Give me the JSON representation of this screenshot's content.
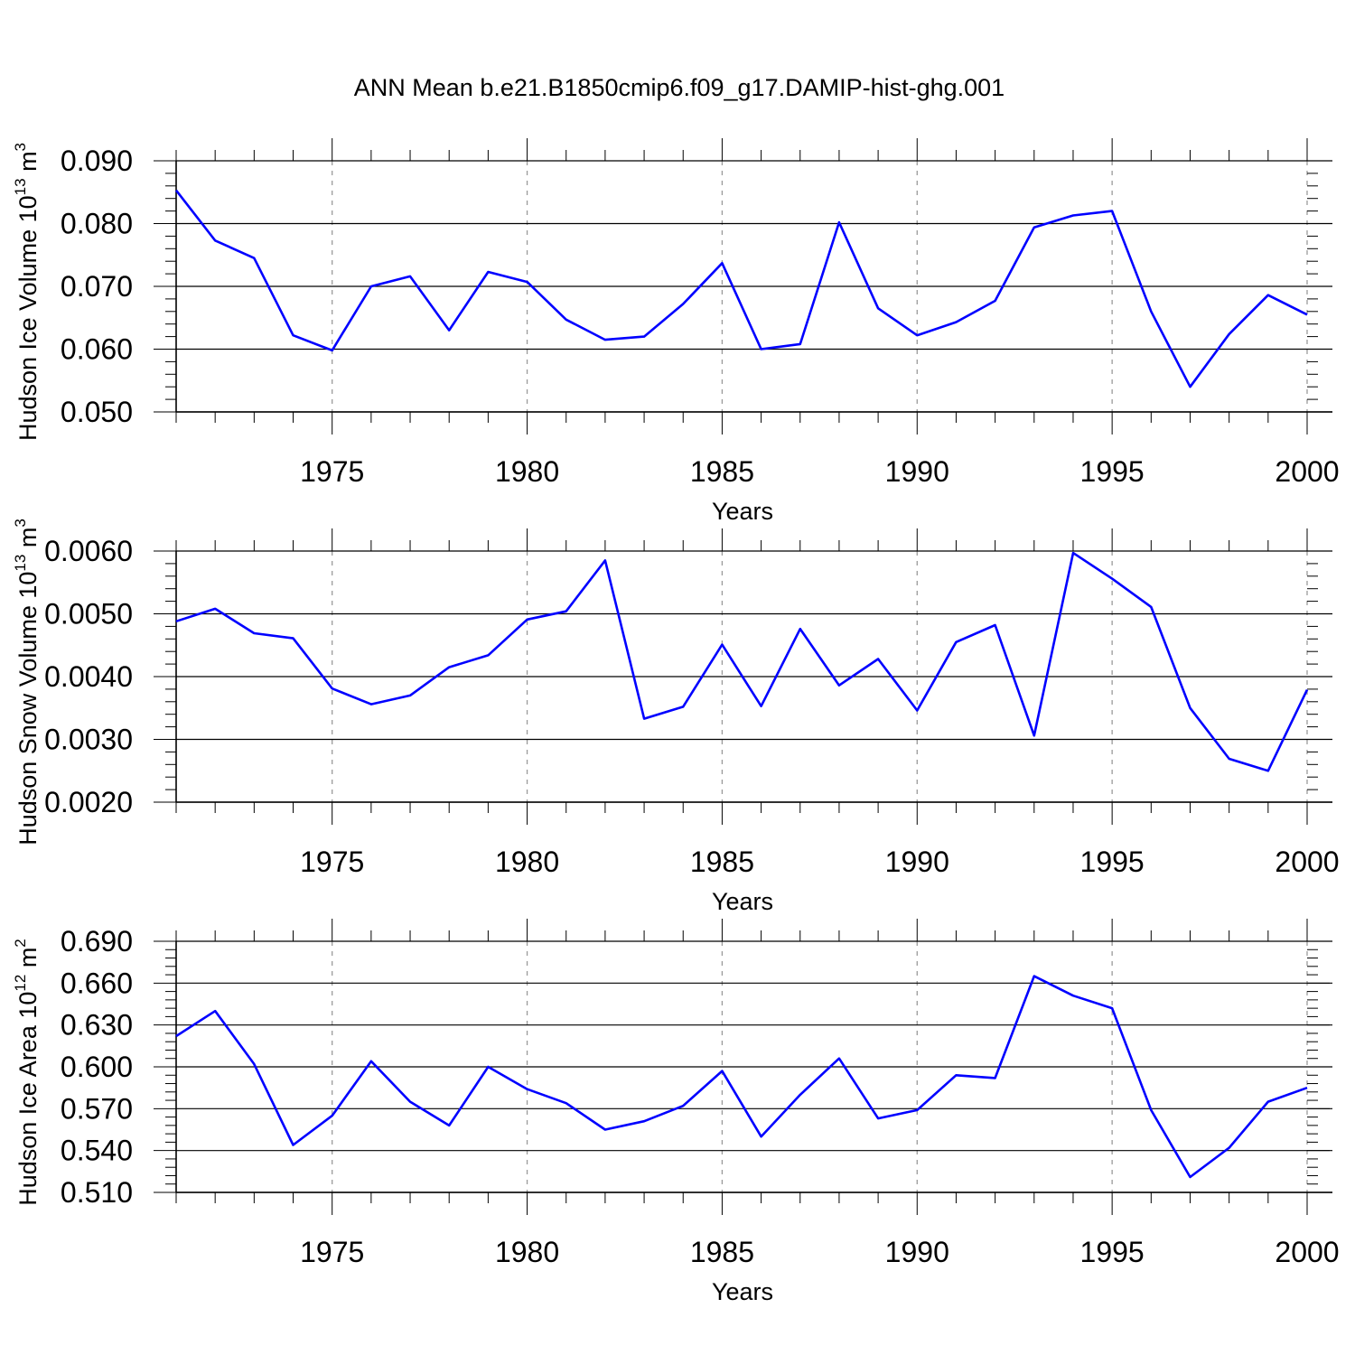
{
  "chart_data": [
    {
      "type": "line",
      "title": "ANN Mean b.e21.B1850cmip6.f09_g17.DAMIP-hist-ghg.001",
      "ylabel": "Hudson Ice Volume",
      "ylabel_unit_base": "10",
      "ylabel_unit_exp": "13",
      "ylabel_unit_tail": " m",
      "ylabel_unit_tail_exp": "3",
      "xlabel": "Years",
      "x": [
        1971,
        1972,
        1973,
        1974,
        1975,
        1976,
        1977,
        1978,
        1979,
        1980,
        1981,
        1982,
        1983,
        1984,
        1985,
        1986,
        1987,
        1988,
        1989,
        1990,
        1991,
        1992,
        1993,
        1994,
        1995,
        1996,
        1997,
        1998,
        1999,
        2000
      ],
      "values": [
        0.0853,
        0.0773,
        0.0745,
        0.0622,
        0.0598,
        0.07,
        0.0716,
        0.063,
        0.0723,
        0.0707,
        0.0647,
        0.0615,
        0.062,
        0.0672,
        0.0737,
        0.06,
        0.0608,
        0.0802,
        0.0665,
        0.0622,
        0.0643,
        0.0677,
        0.0794,
        0.0813,
        0.082,
        0.066,
        0.054,
        0.0624,
        0.0686,
        0.0655
      ],
      "xlim": [
        1971,
        2000
      ],
      "ylim": [
        0.05,
        0.09
      ],
      "xticks": [
        1975,
        1980,
        1985,
        1990,
        1995,
        2000
      ],
      "yticks": [
        0.05,
        0.06,
        0.07,
        0.08,
        0.09
      ],
      "ytick_labels": [
        "0.050",
        "0.060",
        "0.070",
        "0.080",
        "0.090"
      ],
      "xtick_labels": [
        "1975",
        "1980",
        "1985",
        "1990",
        "1995",
        "2000"
      ],
      "line_color": "#0000ff",
      "grid": "dashed vertical at major x ticks"
    },
    {
      "type": "line",
      "ylabel": "Hudson Snow Volume",
      "ylabel_unit_base": "10",
      "ylabel_unit_exp": "13",
      "ylabel_unit_tail": " m",
      "ylabel_unit_tail_exp": "3",
      "xlabel": "Years",
      "x": [
        1971,
        1972,
        1973,
        1974,
        1975,
        1976,
        1977,
        1978,
        1979,
        1980,
        1981,
        1982,
        1983,
        1984,
        1985,
        1986,
        1987,
        1988,
        1989,
        1990,
        1991,
        1992,
        1993,
        1994,
        1995,
        1996,
        1997,
        1998,
        1999,
        2000
      ],
      "values": [
        0.00488,
        0.00508,
        0.00469,
        0.00461,
        0.00381,
        0.00356,
        0.0037,
        0.00415,
        0.00434,
        0.00491,
        0.00504,
        0.00585,
        0.00333,
        0.00352,
        0.00451,
        0.00353,
        0.00476,
        0.00386,
        0.00428,
        0.00346,
        0.00455,
        0.00482,
        0.00306,
        0.00597,
        0.00556,
        0.00511,
        0.0035,
        0.00269,
        0.0025,
        0.00379
      ],
      "xlim": [
        1971,
        2000
      ],
      "ylim": [
        0.002,
        0.006
      ],
      "xticks": [
        1975,
        1980,
        1985,
        1990,
        1995,
        2000
      ],
      "yticks": [
        0.002,
        0.003,
        0.004,
        0.005,
        0.006
      ],
      "ytick_labels": [
        "0.0020",
        "0.0030",
        "0.0040",
        "0.0050",
        "0.0060"
      ],
      "xtick_labels": [
        "1975",
        "1980",
        "1985",
        "1990",
        "1995",
        "2000"
      ],
      "line_color": "#0000ff",
      "grid": "dashed vertical at major x ticks"
    },
    {
      "type": "line",
      "ylabel": "Hudson Ice Area",
      "ylabel_unit_base": "10",
      "ylabel_unit_exp": "12",
      "ylabel_unit_tail": " m",
      "ylabel_unit_tail_exp": "2",
      "xlabel": "Years",
      "x": [
        1971,
        1972,
        1973,
        1974,
        1975,
        1976,
        1977,
        1978,
        1979,
        1980,
        1981,
        1982,
        1983,
        1984,
        1985,
        1986,
        1987,
        1988,
        1989,
        1990,
        1991,
        1992,
        1993,
        1994,
        1995,
        1996,
        1997,
        1998,
        1999,
        2000
      ],
      "values": [
        0.622,
        0.64,
        0.602,
        0.544,
        0.565,
        0.604,
        0.575,
        0.558,
        0.6,
        0.584,
        0.574,
        0.555,
        0.561,
        0.572,
        0.597,
        0.55,
        0.58,
        0.606,
        0.563,
        0.569,
        0.594,
        0.592,
        0.665,
        0.651,
        0.642,
        0.569,
        0.521,
        0.542,
        0.575,
        0.585
      ],
      "xlim": [
        1971,
        2000
      ],
      "ylim": [
        0.51,
        0.69
      ],
      "xticks": [
        1975,
        1980,
        1985,
        1990,
        1995,
        2000
      ],
      "yticks": [
        0.51,
        0.54,
        0.57,
        0.6,
        0.63,
        0.66,
        0.69
      ],
      "ytick_labels": [
        "0.510",
        "0.540",
        "0.570",
        "0.600",
        "0.630",
        "0.660",
        "0.690"
      ],
      "xtick_labels": [
        "1975",
        "1980",
        "1985",
        "1990",
        "1995",
        "2000"
      ],
      "line_color": "#0000ff",
      "grid": "dashed vertical at major x ticks"
    }
  ]
}
